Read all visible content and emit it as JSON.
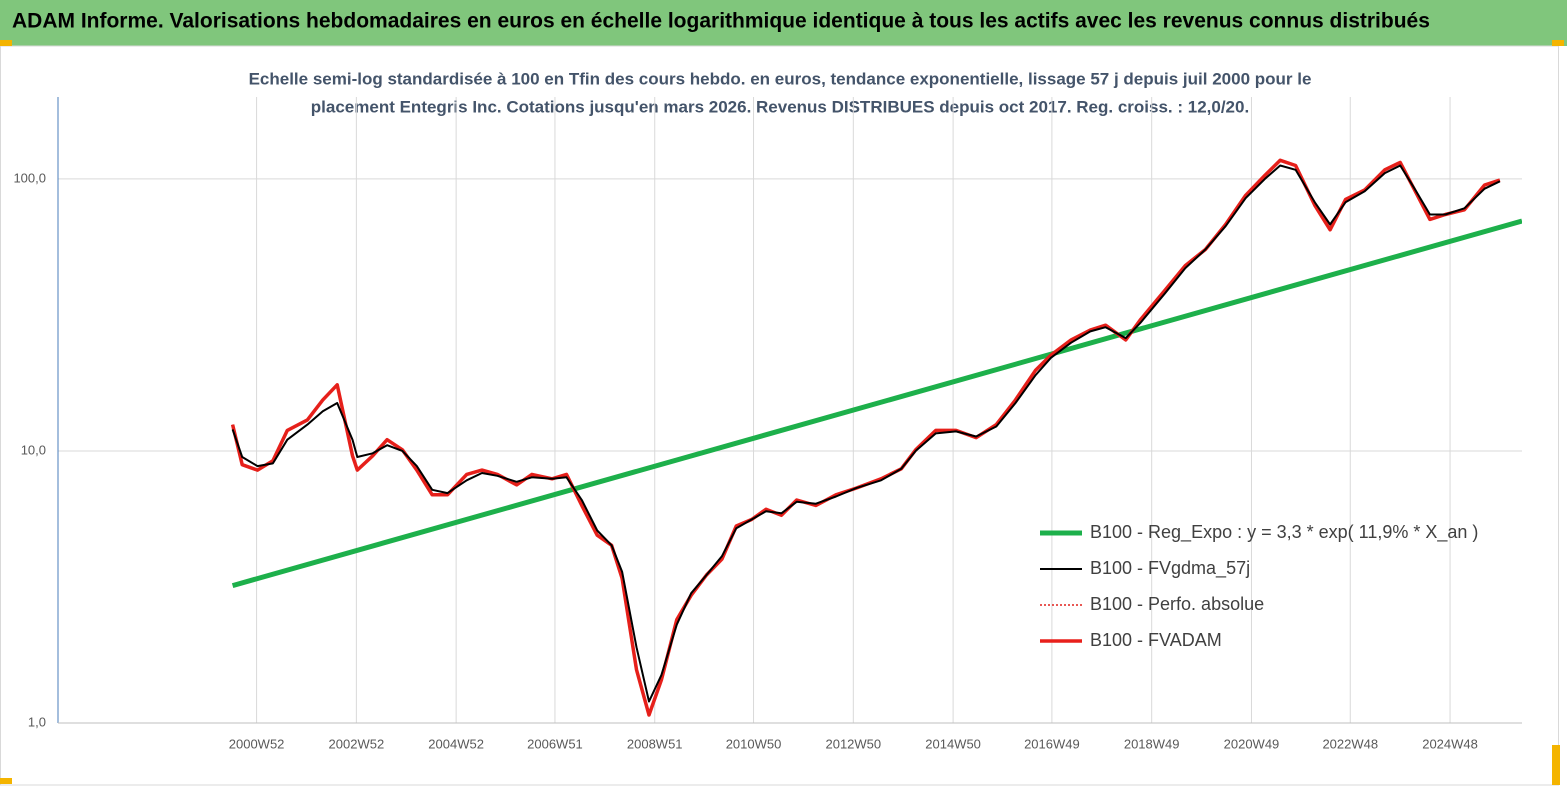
{
  "header": {
    "title": "ADAM Informe. Valorisations hebdomadaires en euros en échelle logarithmique identique à tous les actifs avec les revenus connus distribués"
  },
  "chart_data": {
    "type": "line",
    "subtitle": [
      "Echelle semi-log standardisée à 100 en Tfin des cours hebdo. en euros, tendance exponentielle, lissage 57 j depuis juil 2000 pour le",
      "placement Entegris Inc. Cotations jusqu'en mars 2026. Revenus DISTRIBUES depuis oct 2017.  Reg. croiss. : 12,0/20."
    ],
    "log_scale": true,
    "ylim": [
      1,
      200
    ],
    "yticks": [
      {
        "value": 1,
        "label": "1,0"
      },
      {
        "value": 10,
        "label": "10,0"
      },
      {
        "value": 100,
        "label": "100,0"
      }
    ],
    "xlim": [
      "1997W01",
      "2026W19"
    ],
    "xticks": [
      "2000W52",
      "2002W52",
      "2004W52",
      "2006W51",
      "2008W51",
      "2010W50",
      "2012W50",
      "2014W50",
      "2016W49",
      "2018W49",
      "2020W49",
      "2022W48",
      "2024W48"
    ],
    "grid": true,
    "legend_position": "right",
    "x": [
      "2000W27",
      "2000W37",
      "2001W01",
      "2001W17",
      "2001W32",
      "2002W01",
      "2002W17",
      "2002W32",
      "2002W48",
      "2003W01",
      "2003W17",
      "2003W32",
      "2003W48",
      "2004W11",
      "2004W27",
      "2004W43",
      "2005W11",
      "2005W27",
      "2005W43",
      "2006W11",
      "2006W27",
      "2006W48",
      "2007W11",
      "2007W27",
      "2007W43",
      "2008W06",
      "2008W17",
      "2008W32",
      "2008W45",
      "2009W06",
      "2009W22",
      "2009W37",
      "2010W01",
      "2010W17",
      "2010W32",
      "2010W48",
      "2011W11",
      "2011W27",
      "2011W43",
      "2012W11",
      "2012W32",
      "2013W01",
      "2013W27",
      "2013W48",
      "2014W11",
      "2014W32",
      "2015W01",
      "2015W22",
      "2015W43",
      "2016W11",
      "2016W32",
      "2016W48",
      "2017W17",
      "2017W37",
      "2018W01",
      "2018W22",
      "2018W37",
      "2019W11",
      "2019W32",
      "2020W01",
      "2020W22",
      "2020W43",
      "2021W11",
      "2021W27",
      "2021W43",
      "2022W11",
      "2022W27",
      "2022W43",
      "2023W11",
      "2023W32",
      "2023W48",
      "2024W11",
      "2024W27",
      "2024W43",
      "2025W11",
      "2025W32",
      "2025W48"
    ],
    "series": [
      {
        "name": "B100 - Reg_Expo : y = 3,3 * exp( 11,9% *  X_an )",
        "color": "#1db04b",
        "width": 5,
        "x": [
          "2000W27",
          "2026W19"
        ],
        "values": [
          3.2,
          70
        ]
      },
      {
        "name": "B100 - FVgdma_57j",
        "color": "#000000",
        "width": 2,
        "values": [
          12,
          9.5,
          8.8,
          9,
          11,
          12.5,
          14,
          15,
          11,
          9.5,
          9.8,
          10.5,
          10,
          8.8,
          7.2,
          7,
          7.8,
          8.3,
          8.1,
          7.7,
          8,
          7.9,
          8,
          6.6,
          5.1,
          4.5,
          3.6,
          1.9,
          1.2,
          1.5,
          2.3,
          3.0,
          3.5,
          4.1,
          5.2,
          5.6,
          6.0,
          5.9,
          6.5,
          6.4,
          6.8,
          7.3,
          7.8,
          8.6,
          10,
          11.6,
          11.8,
          11.3,
          12.3,
          15,
          19,
          22,
          25,
          27.5,
          28.5,
          26,
          29.5,
          38,
          47,
          55,
          67,
          85,
          100,
          112,
          108,
          82,
          68,
          82,
          90,
          105,
          112,
          92,
          74,
          74,
          78,
          92,
          98
        ]
      },
      {
        "name": "B100 - Perfo. absolue",
        "color": "#e0201b",
        "dash": true,
        "width": 1.5,
        "values": [
          12.5,
          8.9,
          8.5,
          9.2,
          11.9,
          13,
          15.4,
          17.5,
          9.6,
          8.5,
          9.6,
          11,
          10.1,
          8.5,
          6.9,
          6.9,
          8.2,
          8.5,
          8.2,
          7.5,
          8.2,
          7.9,
          8.2,
          6.3,
          4.9,
          4.5,
          3.4,
          1.57,
          1.07,
          1.44,
          2.4,
          2.95,
          3.5,
          4.0,
          5.3,
          5.6,
          6.1,
          5.8,
          6.6,
          6.3,
          6.9,
          7.3,
          7.9,
          8.6,
          10.1,
          11.9,
          11.9,
          11.2,
          12.5,
          15.4,
          19.8,
          22.5,
          25.6,
          27.8,
          29,
          25.6,
          30.3,
          39,
          48,
          55,
          68,
          87,
          103,
          117,
          112,
          80,
          65,
          84,
          91,
          108,
          115,
          91,
          71,
          74,
          77,
          95,
          99
        ]
      },
      {
        "name": "B100 - FVADAM",
        "color": "#e8201b",
        "width": 3.5,
        "values": [
          12.5,
          8.9,
          8.5,
          9.2,
          11.9,
          13,
          15.4,
          17.5,
          9.6,
          8.5,
          9.6,
          11,
          10.1,
          8.5,
          6.9,
          6.9,
          8.2,
          8.5,
          8.2,
          7.5,
          8.2,
          7.9,
          8.2,
          6.3,
          4.9,
          4.5,
          3.4,
          1.57,
          1.07,
          1.44,
          2.4,
          2.95,
          3.5,
          4.0,
          5.3,
          5.6,
          6.1,
          5.8,
          6.6,
          6.3,
          6.9,
          7.3,
          7.9,
          8.6,
          10.1,
          11.9,
          11.9,
          11.2,
          12.5,
          15.4,
          19.8,
          22.5,
          25.6,
          27.8,
          29,
          25.6,
          30.3,
          39,
          48,
          55,
          68,
          87,
          103,
          117,
          112,
          80,
          65,
          84,
          91,
          108,
          115,
          91,
          71,
          74,
          77,
          95,
          99
        ]
      }
    ]
  }
}
